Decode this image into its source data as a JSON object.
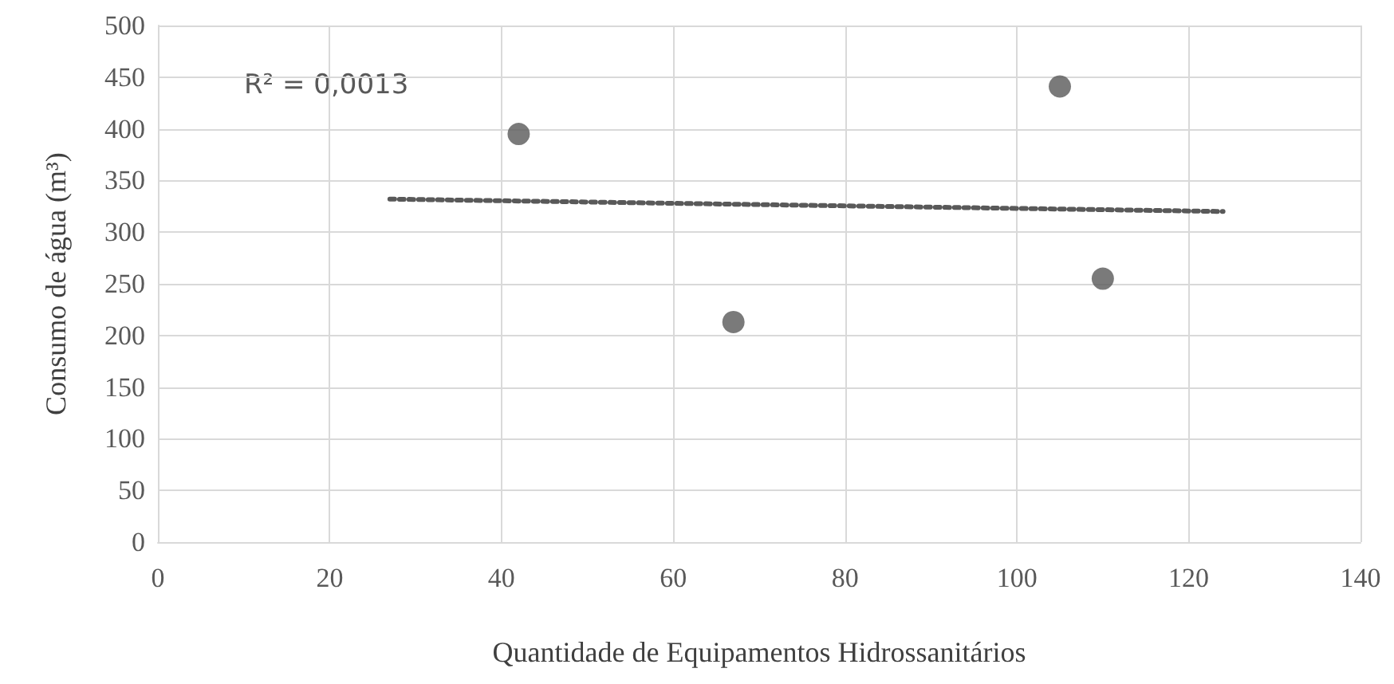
{
  "chart_data": {
    "type": "scatter",
    "xlabel": "Quantidade de Equipamentos Hidrossanitários",
    "ylabel": "Consumo de água (m³)",
    "series": [
      {
        "color": "#595959",
        "x": [
          42,
          67,
          105,
          110
        ],
        "values": [
          395,
          213,
          441,
          255
        ],
        "marker": "circle"
      },
      {
        "type": "line",
        "color": "#595959",
        "x": [
          27,
          124
        ],
        "values": [
          332,
          320
        ],
        "line_style": "dotted",
        "marker": "none"
      }
    ],
    "annotations": [
      {
        "text": "R² = 0,0013"
      }
    ],
    "xlim": [
      0,
      140
    ],
    "xticks": [
      0,
      20,
      40,
      60,
      80,
      100,
      120,
      140
    ],
    "ylim": [
      0,
      500
    ],
    "yticks": [
      0,
      50,
      100,
      150,
      200,
      250,
      300,
      350,
      400,
      450,
      500
    ],
    "grid": true
  }
}
